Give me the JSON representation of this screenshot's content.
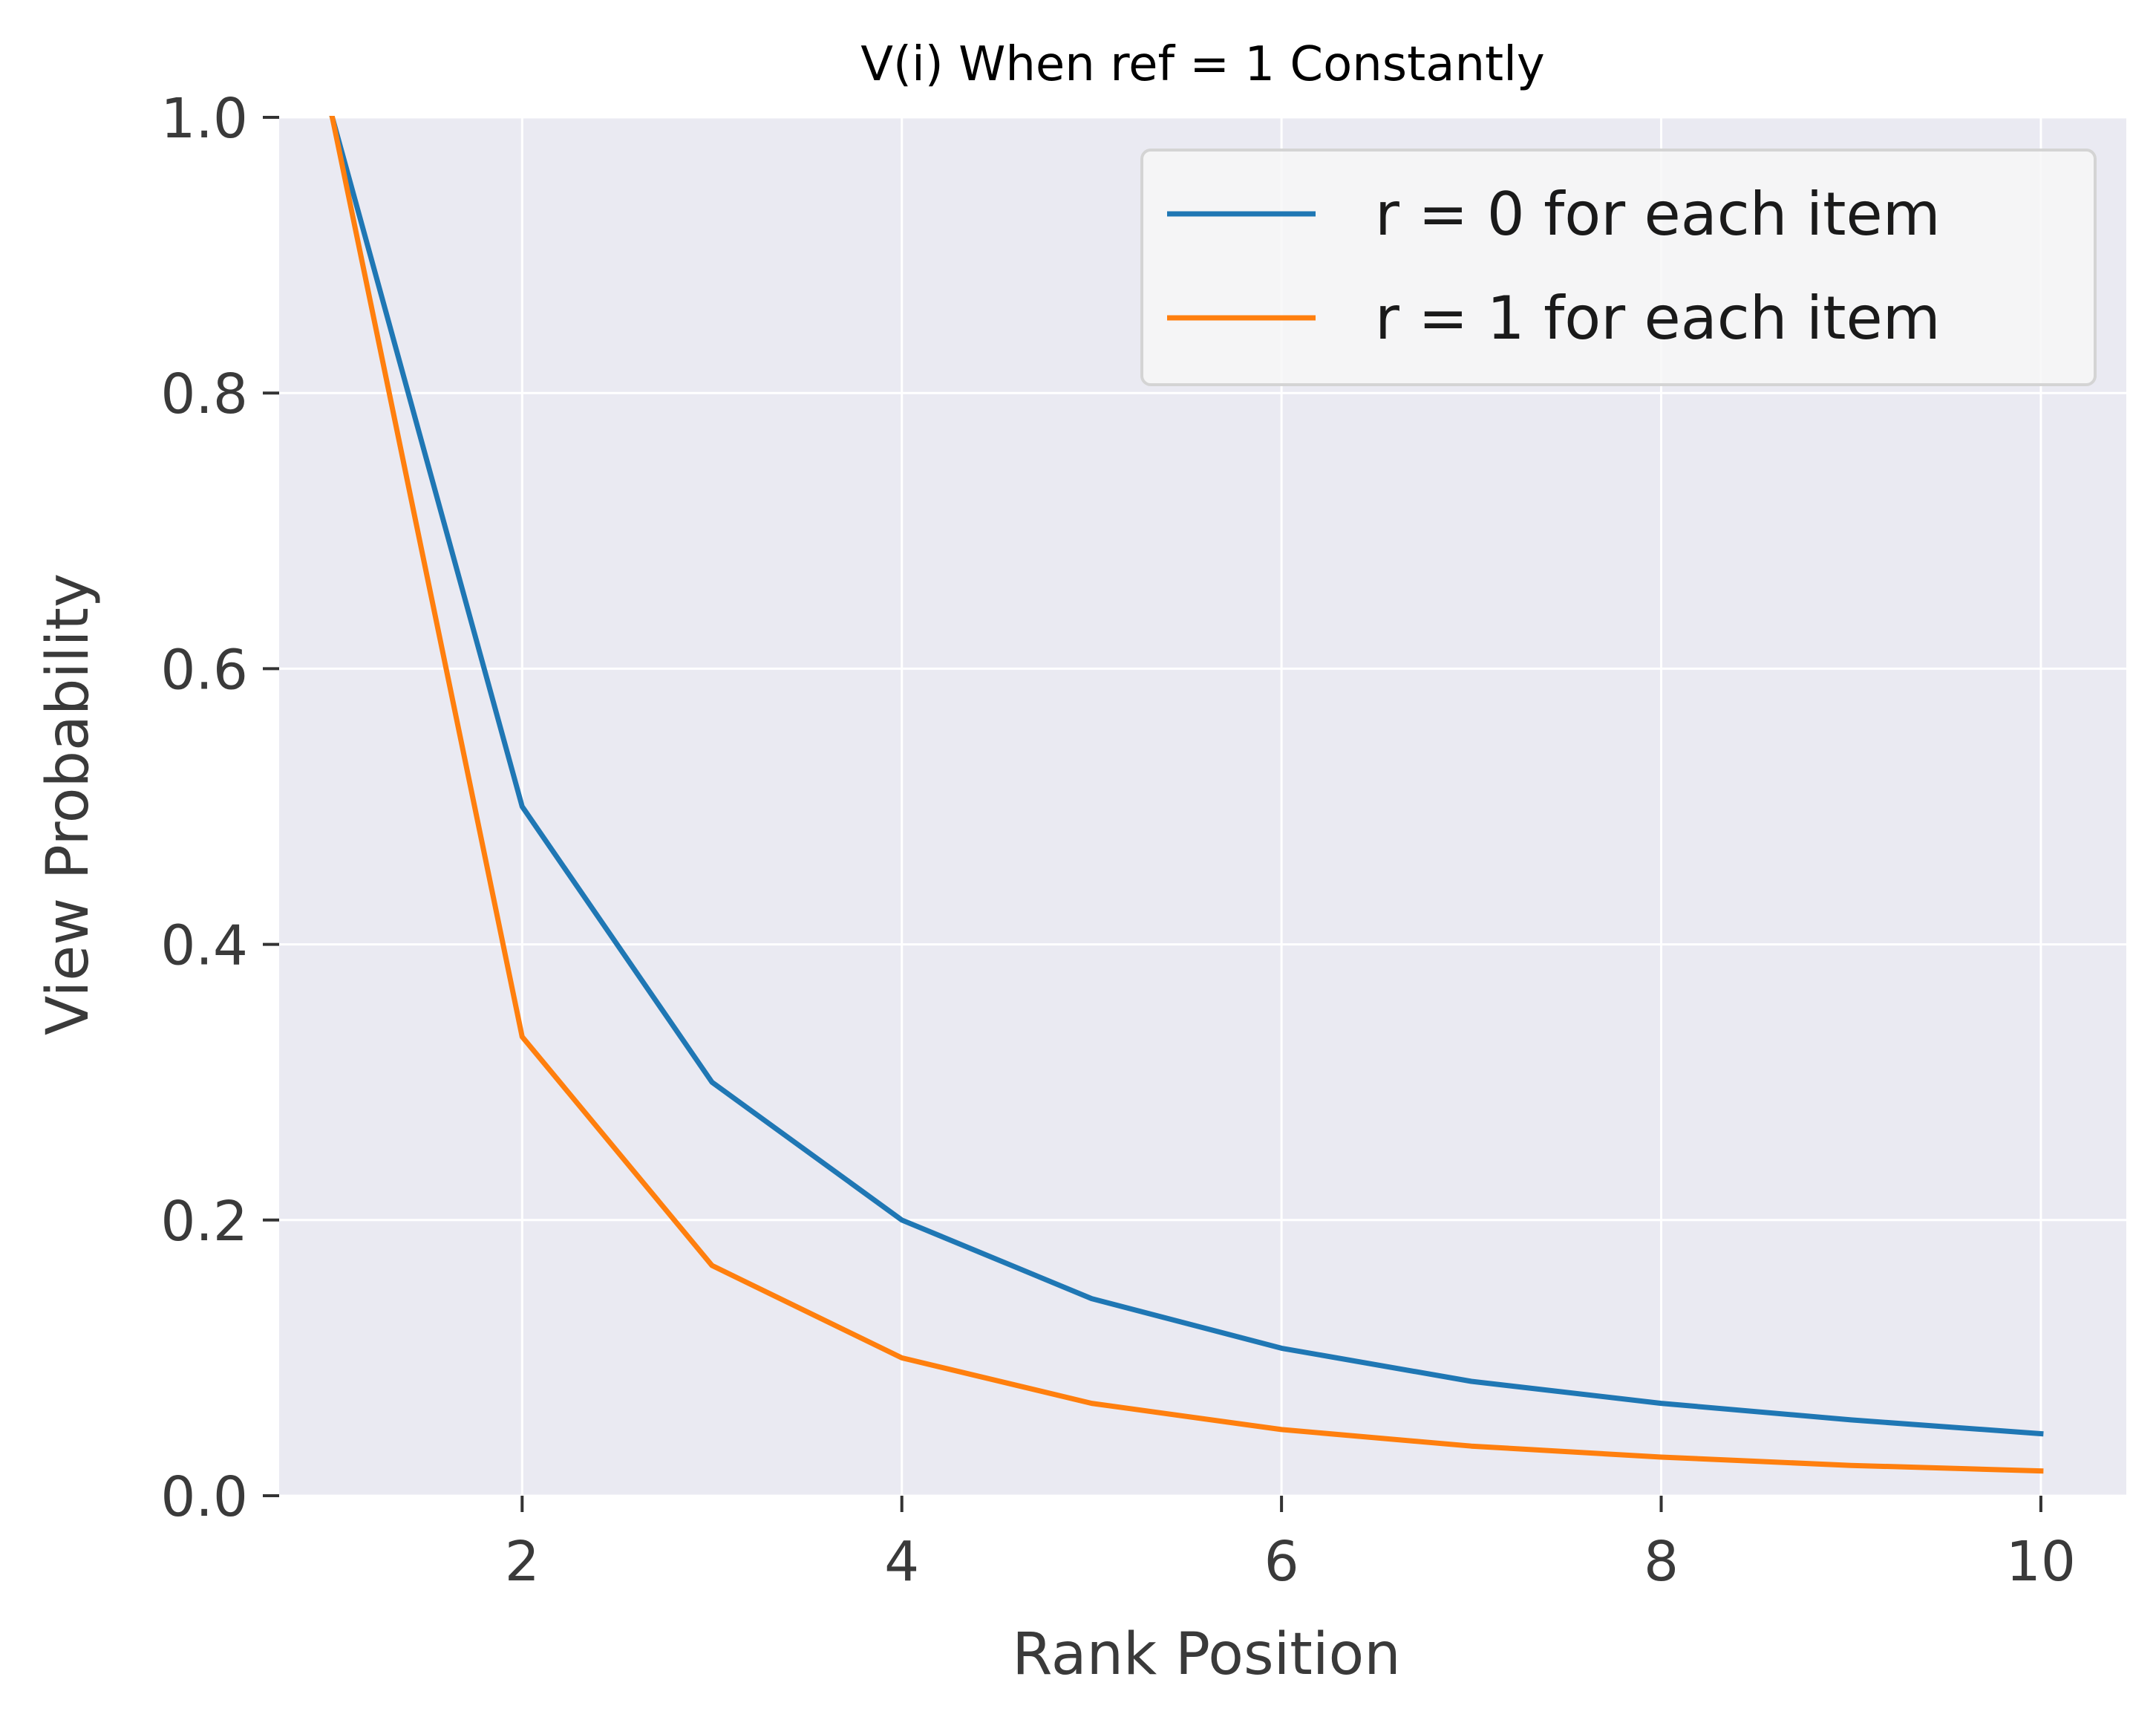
{
  "chart_data": {
    "type": "line",
    "title": "V(i) When ref = 1 Constantly",
    "xlabel": "Rank Position",
    "ylabel": "View Probability",
    "x": [
      1,
      2,
      3,
      4,
      5,
      6,
      7,
      8,
      9,
      10
    ],
    "series": [
      {
        "name": "r = 0 for each item",
        "color": "#1f77b4",
        "values": [
          1.0,
          0.5,
          0.3,
          0.2,
          0.143,
          0.107,
          0.083,
          0.067,
          0.055,
          0.045
        ]
      },
      {
        "name": "r = 1 for each item",
        "color": "#ff7f0e",
        "values": [
          1.0,
          0.333,
          0.167,
          0.1,
          0.067,
          0.048,
          0.036,
          0.028,
          0.022,
          0.018
        ]
      }
    ],
    "xlim": [
      0.72,
      10.45
    ],
    "ylim": [
      0.0,
      1.0
    ],
    "xticks": [
      2,
      4,
      6,
      8,
      10
    ],
    "xtick_labels": [
      "2",
      "4",
      "6",
      "8",
      "10"
    ],
    "yticks": [
      0.0,
      0.2,
      0.4,
      0.6,
      0.8,
      1.0
    ],
    "ytick_labels": [
      "0.0",
      "0.2",
      "0.4",
      "0.6",
      "0.8",
      "1.0"
    ],
    "grid": true,
    "legend_position": "top-right",
    "plot_background": "#eaeaf2",
    "grid_color": "#ffffff"
  }
}
